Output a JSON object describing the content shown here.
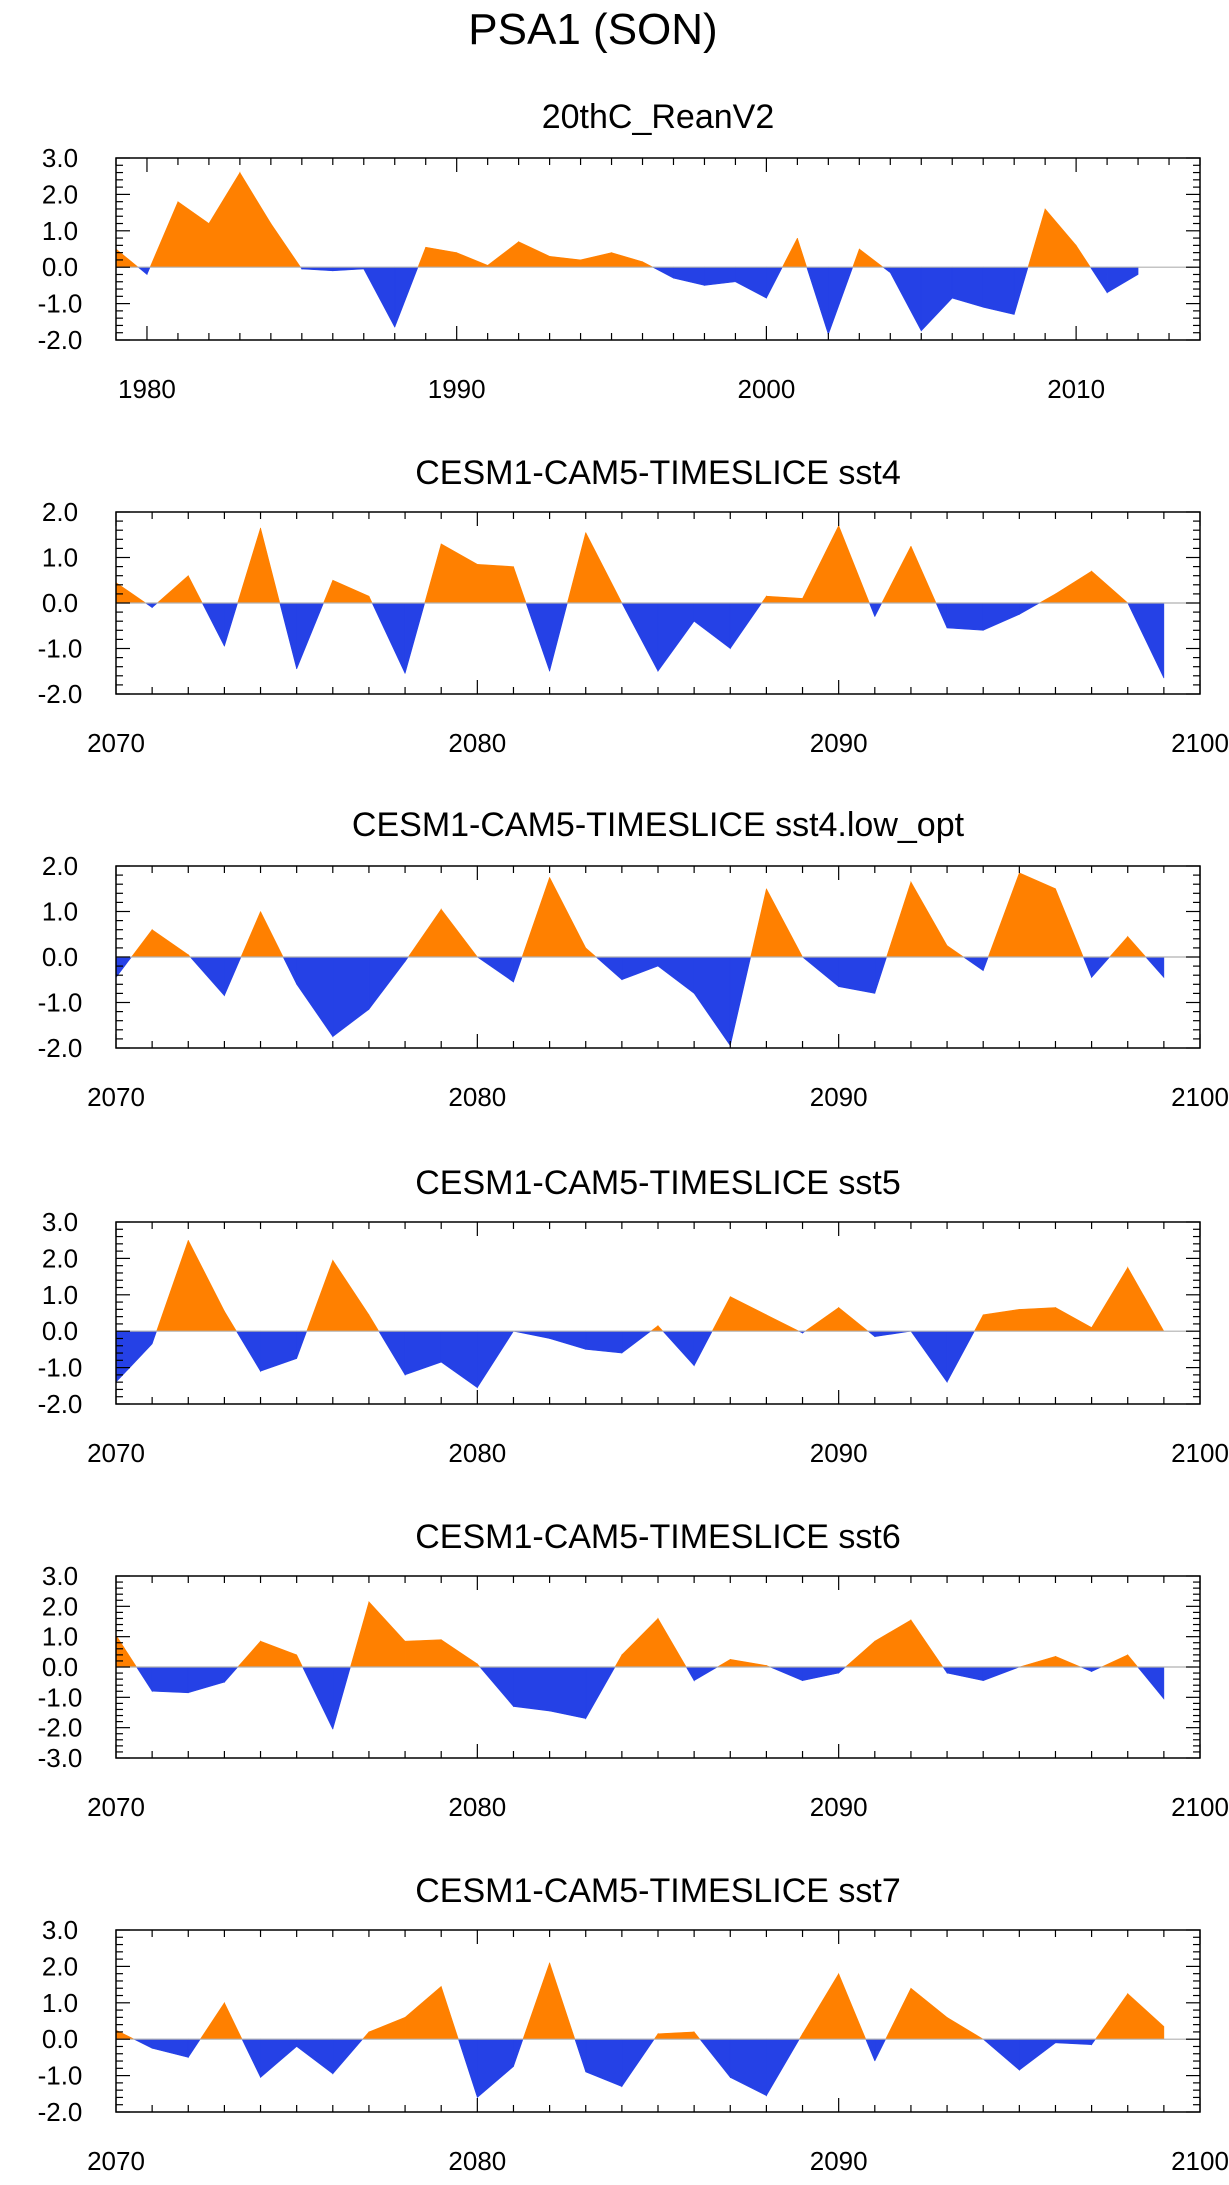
{
  "figure_title": "PSA1 (SON)",
  "colors": {
    "positive": "#ff8000",
    "negative": "#2541e6",
    "frame": "#000000",
    "zero_line": "#b0b0b0"
  },
  "chart_data": [
    {
      "type": "area",
      "title": "20thC_ReanV2",
      "x": [
        1979,
        1980,
        1981,
        1982,
        1983,
        1984,
        1985,
        1986,
        1987,
        1988,
        1989,
        1990,
        1991,
        1992,
        1993,
        1994,
        1995,
        1996,
        1997,
        1998,
        1999,
        2000,
        2001,
        2002,
        2003,
        2004,
        2005,
        2006,
        2007,
        2008,
        2009,
        2010,
        2011,
        2012
      ],
      "values": [
        0.5,
        -0.2,
        1.8,
        1.2,
        2.6,
        1.2,
        -0.05,
        -0.1,
        -0.05,
        -1.65,
        0.55,
        0.4,
        0.05,
        0.7,
        0.3,
        0.2,
        0.4,
        0.15,
        -0.3,
        -0.5,
        -0.4,
        -0.85,
        0.8,
        -1.85,
        0.5,
        -0.15,
        -1.75,
        -0.85,
        -1.1,
        -1.3,
        1.6,
        0.6,
        -0.7,
        -0.2
      ],
      "xlim": [
        1979,
        2014
      ],
      "ylim": [
        -2.0,
        3.0
      ],
      "xticks": [
        "1980",
        "1990",
        "2000",
        "2010"
      ],
      "xtick_values": [
        1980,
        1990,
        2000,
        2010
      ],
      "yticks": [
        "3.0",
        "2.0",
        "1.0",
        "0.0",
        "-1.0",
        "-2.0"
      ],
      "ytick_values": [
        3,
        2,
        1,
        0,
        -1,
        -2
      ]
    },
    {
      "type": "area",
      "title": "CESM1-CAM5-TIMESLICE sst4",
      "x": [
        2070,
        2071,
        2072,
        2073,
        2074,
        2075,
        2076,
        2077,
        2078,
        2079,
        2080,
        2081,
        2082,
        2083,
        2084,
        2085,
        2086,
        2087,
        2088,
        2089,
        2090,
        2091,
        2092,
        2093,
        2094,
        2095,
        2096,
        2097,
        2098,
        2099
      ],
      "values": [
        0.45,
        -0.1,
        0.6,
        -0.95,
        1.65,
        -1.45,
        0.5,
        0.15,
        -1.55,
        1.3,
        0.85,
        0.8,
        -1.5,
        1.55,
        0.0,
        -1.5,
        -0.4,
        -1.0,
        0.15,
        0.1,
        1.7,
        -0.3,
        1.25,
        -0.55,
        -0.6,
        -0.25,
        0.2,
        0.7,
        0.0,
        -1.65
      ],
      "xlim": [
        2070,
        2100
      ],
      "ylim": [
        -2.0,
        2.0
      ],
      "xticks": [
        "2070",
        "2080",
        "2090",
        "2100"
      ],
      "xtick_values": [
        2070,
        2080,
        2090,
        2100
      ],
      "yticks": [
        "2.0",
        "1.0",
        "0.0",
        "-1.0",
        "-2.0"
      ],
      "ytick_values": [
        2,
        1,
        0,
        -1,
        -2
      ]
    },
    {
      "type": "area",
      "title": "CESM1-CAM5-TIMESLICE sst4.low_opt",
      "x": [
        2070,
        2071,
        2072,
        2073,
        2074,
        2075,
        2076,
        2077,
        2078,
        2079,
        2080,
        2081,
        2082,
        2083,
        2084,
        2085,
        2086,
        2087,
        2088,
        2089,
        2090,
        2091,
        2092,
        2093,
        2094,
        2095,
        2096,
        2097,
        2098,
        2099
      ],
      "values": [
        -0.45,
        0.6,
        0.05,
        -0.85,
        1.0,
        -0.6,
        -1.75,
        -1.15,
        -0.1,
        1.05,
        0.0,
        -0.55,
        1.75,
        0.2,
        -0.5,
        -0.2,
        -0.8,
        -1.95,
        1.5,
        0.0,
        -0.65,
        -0.8,
        1.65,
        0.25,
        -0.3,
        1.85,
        1.5,
        -0.45,
        0.45,
        -0.45
      ],
      "xlim": [
        2070,
        2100
      ],
      "ylim": [
        -2.0,
        2.0
      ],
      "xticks": [
        "2070",
        "2080",
        "2090",
        "2100"
      ],
      "xtick_values": [
        2070,
        2080,
        2090,
        2100
      ],
      "yticks": [
        "2.0",
        "1.0",
        "0.0",
        "-1.0",
        "-2.0"
      ],
      "ytick_values": [
        2,
        1,
        0,
        -1,
        -2
      ]
    },
    {
      "type": "area",
      "title": "CESM1-CAM5-TIMESLICE sst5",
      "x": [
        2070,
        2071,
        2072,
        2073,
        2074,
        2075,
        2076,
        2077,
        2078,
        2079,
        2080,
        2081,
        2082,
        2083,
        2084,
        2085,
        2086,
        2087,
        2088,
        2089,
        2090,
        2091,
        2092,
        2093,
        2094,
        2095,
        2096,
        2097,
        2098,
        2099
      ],
      "values": [
        -1.4,
        -0.35,
        2.5,
        0.55,
        -1.1,
        -0.75,
        1.95,
        0.45,
        -1.2,
        -0.85,
        -1.55,
        0.0,
        -0.2,
        -0.5,
        -0.6,
        0.15,
        -0.95,
        0.95,
        0.45,
        -0.05,
        0.65,
        -0.15,
        0.0,
        -1.4,
        0.45,
        0.6,
        0.65,
        0.1,
        1.75,
        0.0
      ],
      "xlim": [
        2070,
        2100
      ],
      "ylim": [
        -2.0,
        3.0
      ],
      "xticks": [
        "2070",
        "2080",
        "2090",
        "2100"
      ],
      "xtick_values": [
        2070,
        2080,
        2090,
        2100
      ],
      "yticks": [
        "3.0",
        "2.0",
        "1.0",
        "0.0",
        "-1.0",
        "-2.0"
      ],
      "ytick_values": [
        3,
        2,
        1,
        0,
        -1,
        -2
      ]
    },
    {
      "type": "area",
      "title": "CESM1-CAM5-TIMESLICE sst6",
      "x": [
        2070,
        2071,
        2072,
        2073,
        2074,
        2075,
        2076,
        2077,
        2078,
        2079,
        2080,
        2081,
        2082,
        2083,
        2084,
        2085,
        2086,
        2087,
        2088,
        2089,
        2090,
        2091,
        2092,
        2093,
        2094,
        2095,
        2096,
        2097,
        2098,
        2099
      ],
      "values": [
        1.05,
        -0.8,
        -0.85,
        -0.5,
        0.85,
        0.4,
        -2.05,
        2.15,
        0.85,
        0.9,
        0.1,
        -1.3,
        -1.45,
        -1.7,
        0.4,
        1.6,
        -0.45,
        0.25,
        0.05,
        -0.45,
        -0.2,
        0.85,
        1.55,
        -0.2,
        -0.45,
        0.0,
        0.35,
        -0.15,
        0.4,
        -1.05
      ],
      "xlim": [
        2070,
        2100
      ],
      "ylim": [
        -3.0,
        3.0
      ],
      "xticks": [
        "2070",
        "2080",
        "2090",
        "2100"
      ],
      "xtick_values": [
        2070,
        2080,
        2090,
        2100
      ],
      "yticks": [
        "3.0",
        "2.0",
        "1.0",
        "0.0",
        "-1.0",
        "-2.0",
        "-3.0"
      ],
      "ytick_values": [
        3,
        2,
        1,
        0,
        -1,
        -2,
        -3
      ]
    },
    {
      "type": "area",
      "title": "CESM1-CAM5-TIMESLICE sst7",
      "x": [
        2070,
        2071,
        2072,
        2073,
        2074,
        2075,
        2076,
        2077,
        2078,
        2079,
        2080,
        2081,
        2082,
        2083,
        2084,
        2085,
        2086,
        2087,
        2088,
        2089,
        2090,
        2091,
        2092,
        2093,
        2094,
        2095,
        2096,
        2097,
        2098,
        2099
      ],
      "values": [
        0.25,
        -0.25,
        -0.5,
        1.0,
        -1.05,
        -0.2,
        -0.95,
        0.2,
        0.6,
        1.45,
        -1.6,
        -0.75,
        2.1,
        -0.9,
        -1.3,
        0.15,
        0.2,
        -1.05,
        -1.55,
        0.15,
        1.8,
        -0.6,
        1.4,
        0.6,
        0.0,
        -0.85,
        -0.1,
        -0.15,
        1.25,
        0.35
      ],
      "xlim": [
        2070,
        2100
      ],
      "ylim": [
        -2.0,
        3.0
      ],
      "xticks": [
        "2070",
        "2080",
        "2090",
        "2100"
      ],
      "xtick_values": [
        2070,
        2080,
        2090,
        2100
      ],
      "yticks": [
        "3.0",
        "2.0",
        "1.0",
        "0.0",
        "-1.0",
        "-2.0"
      ],
      "ytick_values": [
        3,
        2,
        1,
        0,
        -1,
        -2
      ]
    }
  ]
}
